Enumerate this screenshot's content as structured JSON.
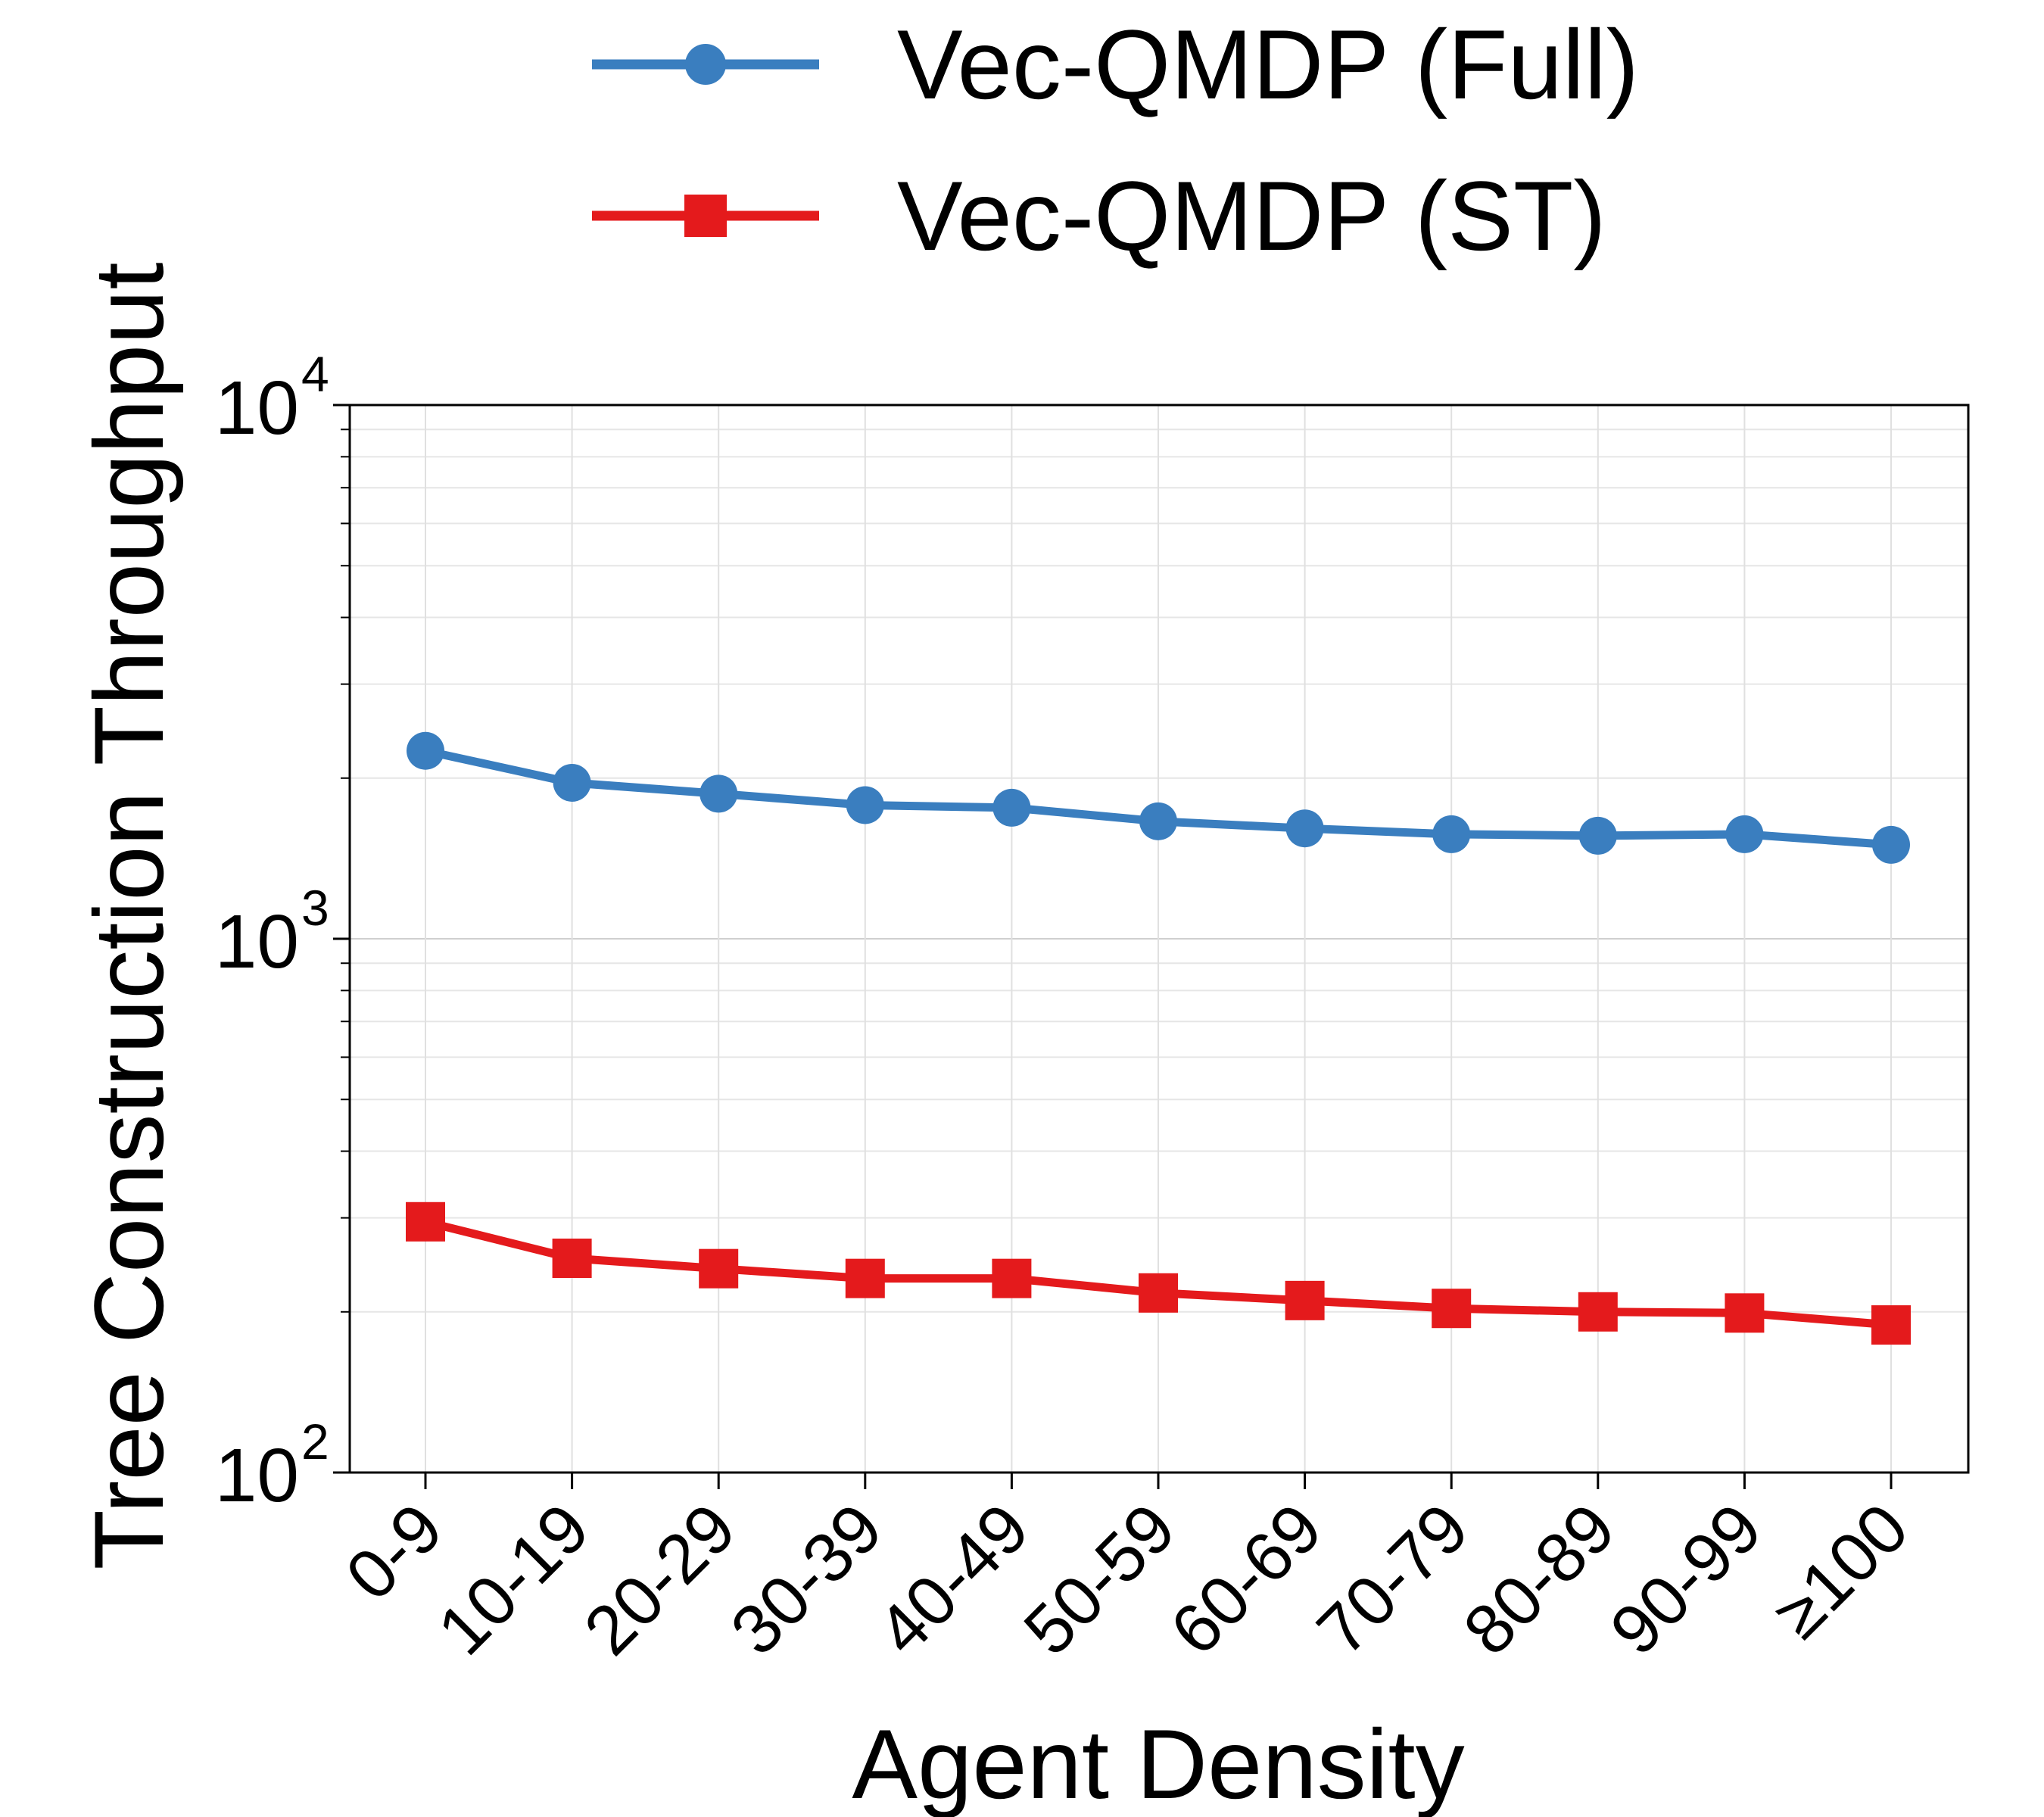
{
  "chart_data": {
    "type": "line",
    "title": "",
    "xlabel": "Agent Density",
    "ylabel": "Tree Construction Throughput",
    "yscale": "log",
    "ylim": [
      100,
      10000
    ],
    "grid": true,
    "legend_position": "top",
    "categories": [
      "0-9",
      "10-19",
      "20-29",
      "30-39",
      "40-49",
      "50-59",
      "60-69",
      "70-79",
      "80-89",
      "90-99",
      "≥100"
    ],
    "y_ticks": [
      {
        "value": 100,
        "base": "10",
        "exp": "2"
      },
      {
        "value": 1000,
        "base": "10",
        "exp": "3"
      },
      {
        "value": 10000,
        "base": "10",
        "exp": "4"
      }
    ],
    "series": [
      {
        "name": "Vec-QMDP (Full)",
        "color": "#3a7ebf",
        "marker": "circle",
        "values": [
          2250,
          1960,
          1870,
          1780,
          1760,
          1660,
          1610,
          1570,
          1560,
          1570,
          1500
        ]
      },
      {
        "name": "Vec-QMDP (ST)",
        "color": "#e41a1c",
        "marker": "square",
        "values": [
          295,
          252,
          241,
          231,
          231,
          217,
          210,
          203,
          200,
          199,
          189
        ]
      }
    ]
  }
}
